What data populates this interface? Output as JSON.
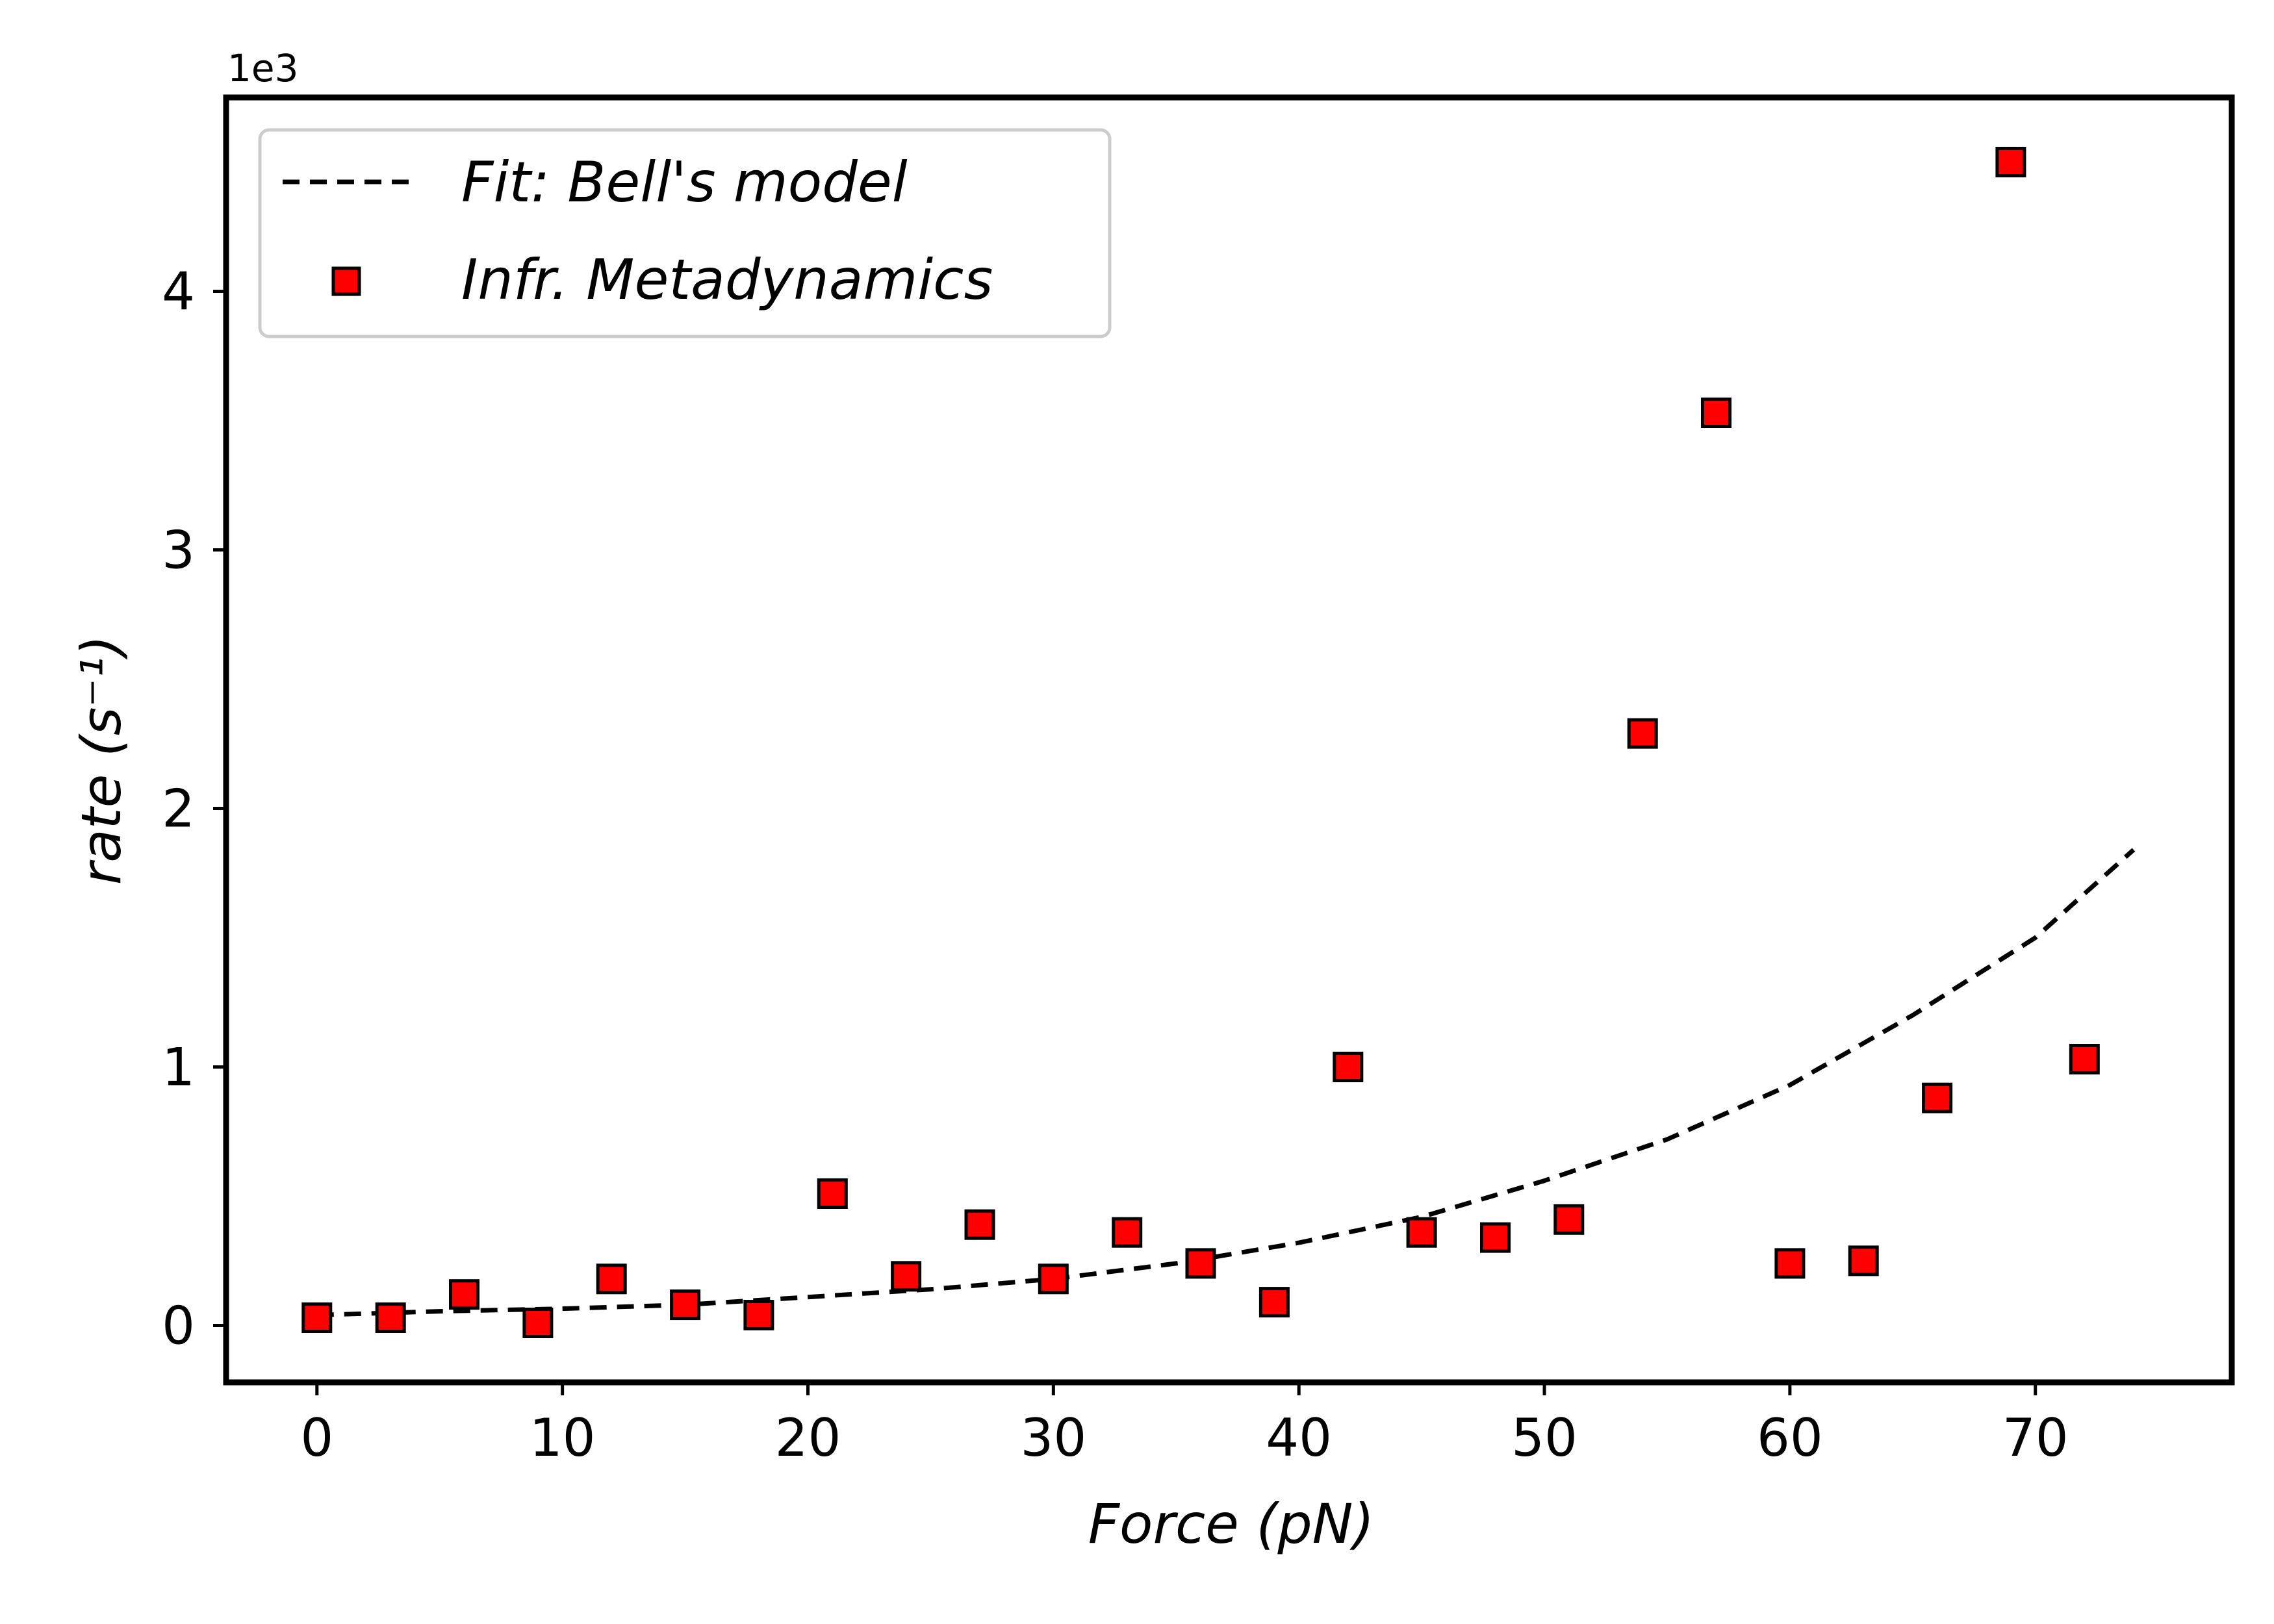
{
  "chart_data": {
    "type": "scatter",
    "xlabel": "Force (pN)",
    "ylabel": "rate (s⁻¹)",
    "y_multiplier": "1e3",
    "xlim": [
      -3.7,
      78
    ],
    "ylim": [
      -0.22,
      4.75
    ],
    "x_ticks": [
      0,
      10,
      20,
      30,
      40,
      50,
      60,
      70
    ],
    "x_tick_labels": [
      "0",
      "10",
      "20",
      "30",
      "40",
      "50",
      "60",
      "70"
    ],
    "y_ticks": [
      0,
      1,
      2,
      3,
      4
    ],
    "y_tick_labels": [
      "0",
      "1",
      "2",
      "3",
      "4"
    ],
    "grid": false,
    "legend_position": "upper-left",
    "series": [
      {
        "name": "Fit: Bell's model",
        "kind": "line",
        "style": "dashed",
        "color": "#000000",
        "x": [
          0,
          5,
          10,
          15,
          20,
          25,
          30,
          35,
          40,
          45,
          50,
          55,
          60,
          65,
          70,
          74
        ],
        "y": [
          0.04,
          0.055,
          0.065,
          0.08,
          0.11,
          0.14,
          0.18,
          0.24,
          0.32,
          0.42,
          0.56,
          0.72,
          0.93,
          1.2,
          1.5,
          1.84
        ]
      },
      {
        "name": "Infr. Metadynamics",
        "kind": "scatter",
        "marker": "square",
        "color": "#ff0000",
        "edge_color": "#000000",
        "x": [
          0,
          3,
          6,
          9,
          12,
          15,
          18,
          21,
          24,
          27,
          30,
          33,
          36,
          39,
          42,
          45,
          48,
          51,
          54,
          57,
          60,
          63,
          66,
          69,
          72
        ],
        "y": [
          0.03,
          0.03,
          0.12,
          0.01,
          0.18,
          0.08,
          0.04,
          0.51,
          0.19,
          0.39,
          0.18,
          0.36,
          0.24,
          0.09,
          1.0,
          0.36,
          0.34,
          0.41,
          2.29,
          3.53,
          0.24,
          0.25,
          0.88,
          4.5,
          1.03
        ]
      }
    ],
    "legend": {
      "entries": [
        "Fit: Bell's model",
        "Infr. Metadynamics"
      ]
    }
  }
}
